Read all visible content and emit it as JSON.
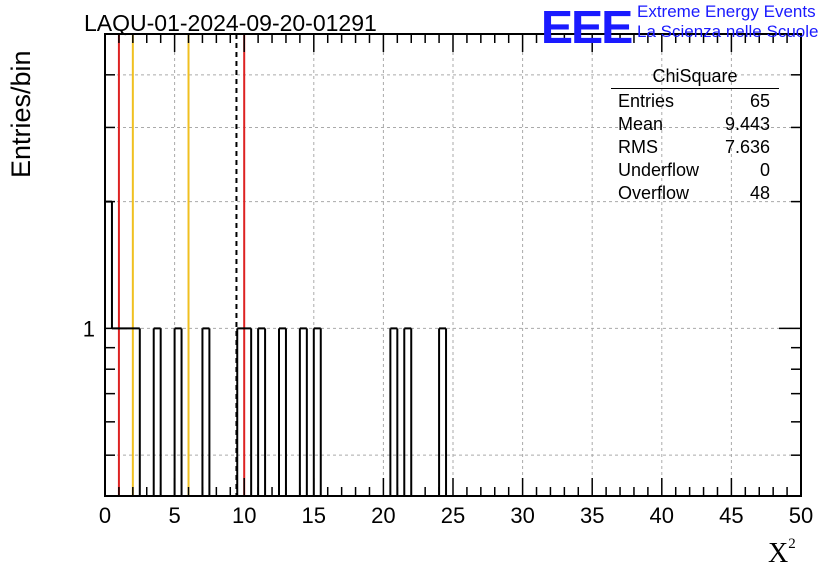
{
  "chart_data": {
    "type": "bar",
    "title": "LAQU-01-2024-09-20-01291",
    "xlabel": "X",
    "xlabel_sup": "2",
    "ylabel": "Entries/bin",
    "xlim": [
      0,
      50
    ],
    "ylog": true,
    "grid": true,
    "bin_width": 0.5,
    "x_ticks": [
      "0",
      "5",
      "10",
      "15",
      "20",
      "25",
      "30",
      "35",
      "40",
      "45",
      "50"
    ],
    "y_ticks": [
      "1"
    ],
    "bins": [
      {
        "x": 0.0,
        "count": 2
      },
      {
        "x": 0.5,
        "count": 1
      },
      {
        "x": 1.0,
        "count": 1
      },
      {
        "x": 1.5,
        "count": 1
      },
      {
        "x": 2.0,
        "count": 1
      },
      {
        "x": 3.5,
        "count": 1
      },
      {
        "x": 5.0,
        "count": 1
      },
      {
        "x": 7.0,
        "count": 1
      },
      {
        "x": 9.5,
        "count": 1
      },
      {
        "x": 10.0,
        "count": 1
      },
      {
        "x": 11.0,
        "count": 1
      },
      {
        "x": 12.5,
        "count": 1
      },
      {
        "x": 14.0,
        "count": 1
      },
      {
        "x": 15.0,
        "count": 1
      },
      {
        "x": 20.5,
        "count": 1
      },
      {
        "x": 21.5,
        "count": 1
      },
      {
        "x": 24.0,
        "count": 1
      }
    ],
    "vlines": [
      {
        "x": 1.0,
        "color": "#dd2222",
        "style": "solid"
      },
      {
        "x": 2.0,
        "color": "#f0c020",
        "style": "solid"
      },
      {
        "x": 6.0,
        "color": "#f0c020",
        "style": "solid"
      },
      {
        "x": 9.443,
        "color": "#000000",
        "style": "dashed"
      },
      {
        "x": 10.0,
        "color": "#dd2222",
        "style": "solid"
      }
    ]
  },
  "stats": {
    "name": "ChiSquare",
    "rows": [
      {
        "label": "Entries",
        "value": "65"
      },
      {
        "label": "Mean",
        "value": "9.443"
      },
      {
        "label": "RMS",
        "value": "7.636"
      },
      {
        "label": "Underflow",
        "value": "0"
      },
      {
        "label": "Overflow",
        "value": "48"
      }
    ]
  },
  "logo": {
    "mark": "EEE",
    "line1": "Extreme Energy Events",
    "line2": "La Scienza nelle Scuole",
    "color": "#1a1aff"
  }
}
